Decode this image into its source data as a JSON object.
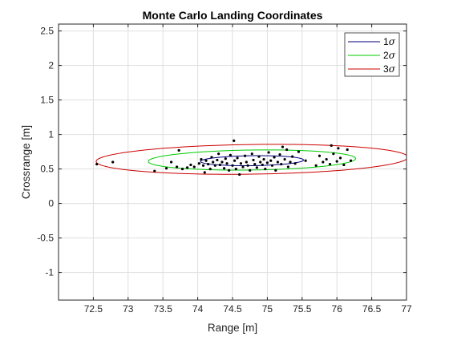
{
  "chart_data": {
    "type": "scatter",
    "title": "Monte Carlo Landing Coordinates",
    "xlabel": "Range [m]",
    "ylabel": "Crossrange [m]",
    "xlim": [
      72,
      77
    ],
    "ylim": [
      -1.4,
      2.6
    ],
    "xticks": [
      72.5,
      73,
      73.5,
      74,
      74.5,
      75,
      75.5,
      76,
      76.5,
      77
    ],
    "xtick_labels": [
      "72.5",
      "73",
      "73.5",
      "74",
      "74.5",
      "75",
      "75.5",
      "76",
      "76.5",
      "77"
    ],
    "yticks": [
      -1,
      -0.5,
      0,
      0.5,
      1,
      1.5,
      2,
      2.5
    ],
    "ytick_labels": [
      "-1",
      "-0.5",
      "0",
      "0.5",
      "1",
      "1.5",
      "2",
      "2.5"
    ],
    "grid": true,
    "legend_position": "top-right",
    "legend": [
      {
        "label": "1",
        "symbol": "σ",
        "color": "#00007f"
      },
      {
        "label": "2",
        "symbol": "σ",
        "color": "#00cc00"
      },
      {
        "label": "3",
        "symbol": "σ",
        "color": "#cc0000"
      }
    ],
    "ellipses": [
      {
        "sigma": 1,
        "center": [
          74.78,
          0.62
        ],
        "semi_axis_range": 0.74,
        "semi_axis_cross": 0.072,
        "tilt_deg": 0.8,
        "color": "#00007f"
      },
      {
        "sigma": 2,
        "center": [
          74.78,
          0.63
        ],
        "semi_axis_range": 1.49,
        "semi_axis_cross": 0.145,
        "tilt_deg": 0.8,
        "color": "#00cc00"
      },
      {
        "sigma": 3,
        "center": [
          74.78,
          0.64
        ],
        "semi_axis_range": 2.24,
        "semi_axis_cross": 0.215,
        "tilt_deg": 0.8,
        "color": "#cc0000"
      }
    ],
    "points": [
      {
        "x": 72.55,
        "y": 0.57
      },
      {
        "x": 72.78,
        "y": 0.6
      },
      {
        "x": 73.38,
        "y": 0.47
      },
      {
        "x": 73.55,
        "y": 0.51
      },
      {
        "x": 73.62,
        "y": 0.6
      },
      {
        "x": 73.7,
        "y": 0.53
      },
      {
        "x": 73.73,
        "y": 0.77
      },
      {
        "x": 73.78,
        "y": 0.5
      },
      {
        "x": 73.85,
        "y": 0.52
      },
      {
        "x": 73.9,
        "y": 0.56
      },
      {
        "x": 73.95,
        "y": 0.53
      },
      {
        "x": 74.02,
        "y": 0.58
      },
      {
        "x": 74.05,
        "y": 0.64
      },
      {
        "x": 74.08,
        "y": 0.55
      },
      {
        "x": 74.1,
        "y": 0.45
      },
      {
        "x": 74.12,
        "y": 0.62
      },
      {
        "x": 74.15,
        "y": 0.57
      },
      {
        "x": 74.18,
        "y": 0.5
      },
      {
        "x": 74.2,
        "y": 0.67
      },
      {
        "x": 74.22,
        "y": 0.6
      },
      {
        "x": 74.25,
        "y": 0.55
      },
      {
        "x": 74.28,
        "y": 0.63
      },
      {
        "x": 74.3,
        "y": 0.72
      },
      {
        "x": 74.32,
        "y": 0.56
      },
      {
        "x": 74.35,
        "y": 0.6
      },
      {
        "x": 74.38,
        "y": 0.51
      },
      {
        "x": 74.4,
        "y": 0.65
      },
      {
        "x": 74.42,
        "y": 0.58
      },
      {
        "x": 74.45,
        "y": 0.48
      },
      {
        "x": 74.47,
        "y": 0.7
      },
      {
        "x": 74.5,
        "y": 0.55
      },
      {
        "x": 74.52,
        "y": 0.91
      },
      {
        "x": 74.53,
        "y": 0.62
      },
      {
        "x": 74.55,
        "y": 0.5
      },
      {
        "x": 74.57,
        "y": 0.66
      },
      {
        "x": 74.6,
        "y": 0.42
      },
      {
        "x": 74.62,
        "y": 0.58
      },
      {
        "x": 74.65,
        "y": 0.53
      },
      {
        "x": 74.68,
        "y": 0.69
      },
      {
        "x": 74.7,
        "y": 0.6
      },
      {
        "x": 74.72,
        "y": 0.55
      },
      {
        "x": 74.75,
        "y": 0.48
      },
      {
        "x": 74.78,
        "y": 0.72
      },
      {
        "x": 74.8,
        "y": 0.63
      },
      {
        "x": 74.82,
        "y": 0.57
      },
      {
        "x": 74.85,
        "y": 0.52
      },
      {
        "x": 74.88,
        "y": 0.68
      },
      {
        "x": 74.9,
        "y": 0.6
      },
      {
        "x": 74.93,
        "y": 0.56
      },
      {
        "x": 74.95,
        "y": 0.64
      },
      {
        "x": 74.97,
        "y": 0.5
      },
      {
        "x": 75.0,
        "y": 0.59
      },
      {
        "x": 75.02,
        "y": 0.74
      },
      {
        "x": 75.05,
        "y": 0.62
      },
      {
        "x": 75.07,
        "y": 0.55
      },
      {
        "x": 75.1,
        "y": 0.67
      },
      {
        "x": 75.12,
        "y": 0.48
      },
      {
        "x": 75.15,
        "y": 0.6
      },
      {
        "x": 75.18,
        "y": 0.71
      },
      {
        "x": 75.2,
        "y": 0.57
      },
      {
        "x": 75.22,
        "y": 0.82
      },
      {
        "x": 75.25,
        "y": 0.64
      },
      {
        "x": 75.28,
        "y": 0.78
      },
      {
        "x": 75.3,
        "y": 0.53
      },
      {
        "x": 75.33,
        "y": 0.6
      },
      {
        "x": 75.36,
        "y": 0.68
      },
      {
        "x": 75.4,
        "y": 0.58
      },
      {
        "x": 75.45,
        "y": 0.75
      },
      {
        "x": 75.55,
        "y": 0.62
      },
      {
        "x": 75.7,
        "y": 0.55
      },
      {
        "x": 75.75,
        "y": 0.69
      },
      {
        "x": 75.8,
        "y": 0.6
      },
      {
        "x": 75.85,
        "y": 0.64
      },
      {
        "x": 75.9,
        "y": 0.57
      },
      {
        "x": 75.92,
        "y": 0.84
      },
      {
        "x": 75.95,
        "y": 0.72
      },
      {
        "x": 76.0,
        "y": 0.61
      },
      {
        "x": 76.02,
        "y": 0.8
      },
      {
        "x": 76.05,
        "y": 0.66
      },
      {
        "x": 76.1,
        "y": 0.56
      },
      {
        "x": 76.15,
        "y": 0.78
      },
      {
        "x": 76.2,
        "y": 0.62
      }
    ]
  }
}
